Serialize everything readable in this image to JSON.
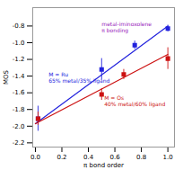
{
  "chart_data": {
    "type": "scatter",
    "xlabel": "π bond order",
    "ylabel": "MOS",
    "xlim": [
      -0.02,
      1.05
    ],
    "ylim": [
      -2.25,
      -0.58
    ],
    "xticks": [
      {
        "value": 0.0,
        "label": "0.0"
      },
      0.2,
      0.4,
      0.6,
      0.8,
      {
        "value": 1.0,
        "label": "1.0"
      }
    ],
    "yticks": [
      -2.2,
      {
        "value": -2.0,
        "label": "-2.0"
      },
      -1.8,
      -1.6,
      -1.4,
      -1.2,
      {
        "value": -1.0,
        "label": "-1.0"
      },
      -0.8
    ],
    "grid": false,
    "series": [
      {
        "type": "line",
        "color": "#2222dd",
        "x": [
          0.0,
          1.0
        ],
        "values": [
          -1.97,
          -0.8
        ]
      },
      {
        "type": "line",
        "color": "#cc1111",
        "x": [
          0.0,
          1.0
        ],
        "values": [
          -1.97,
          -1.14
        ]
      },
      {
        "type": "scatter",
        "marker": "square",
        "color": "#2222dd",
        "x": [
          0.02,
          0.5,
          0.75,
          1.0
        ],
        "values": [
          -1.91,
          -1.32,
          -1.03,
          -0.83
        ],
        "errors": [
          0.15,
          0.13,
          0.05,
          0.04
        ]
      },
      {
        "type": "scatter",
        "marker": "square",
        "color": "#cc1111",
        "x": [
          0.02,
          0.5,
          0.667,
          1.0
        ],
        "values": [
          -1.91,
          -1.62,
          -1.38,
          -1.19
        ],
        "errors": [
          0.08,
          0.07,
          0.06,
          0.13
        ]
      }
    ],
    "annotations": [
      {
        "x": 0.1,
        "y": -1.38,
        "text": "M = Ru",
        "color": "#2222dd"
      },
      {
        "x": 0.1,
        "y": -1.46,
        "text": "65% metal/35% ligand",
        "color": "#2222dd"
      },
      {
        "x": 0.52,
        "y": -1.66,
        "text": "M = Os",
        "color": "#cc1111"
      },
      {
        "x": 0.52,
        "y": -1.74,
        "text": "40% metal/60% ligand",
        "color": "#cc1111"
      },
      {
        "x": 0.5,
        "y": -0.78,
        "text": "metal-iminoxolene",
        "color": "#9922bb"
      },
      {
        "x": 0.5,
        "y": -0.86,
        "text": "π bonding",
        "color": "#9922bb"
      }
    ]
  }
}
